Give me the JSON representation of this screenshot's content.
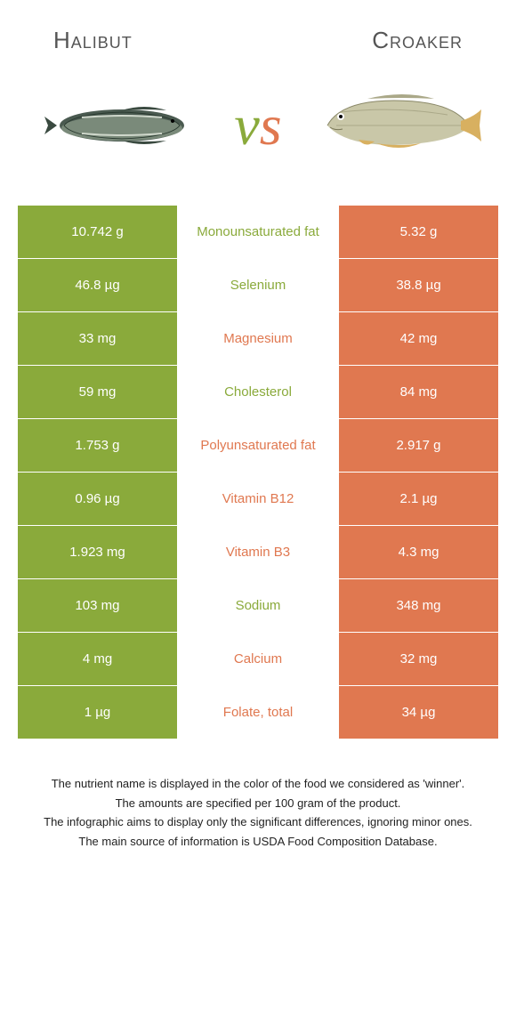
{
  "header": {
    "left": "Halibut",
    "right": "Croaker"
  },
  "vs": {
    "v": "v",
    "s": "s"
  },
  "colors": {
    "left": "#8aaa3b",
    "right": "#e07850",
    "mid_text_left": "#8aaa3b",
    "mid_text_right": "#e07850"
  },
  "rows": [
    {
      "left": "10.742 g",
      "mid": "Monounsaturated fat",
      "right": "5.32 g",
      "winner": "left"
    },
    {
      "left": "46.8 µg",
      "mid": "Selenium",
      "right": "38.8 µg",
      "winner": "left"
    },
    {
      "left": "33 mg",
      "mid": "Magnesium",
      "right": "42 mg",
      "winner": "right"
    },
    {
      "left": "59 mg",
      "mid": "Cholesterol",
      "right": "84 mg",
      "winner": "left"
    },
    {
      "left": "1.753 g",
      "mid": "Polyunsaturated fat",
      "right": "2.917 g",
      "winner": "right"
    },
    {
      "left": "0.96 µg",
      "mid": "Vitamin B12",
      "right": "2.1 µg",
      "winner": "right"
    },
    {
      "left": "1.923 mg",
      "mid": "Vitamin B3",
      "right": "4.3 mg",
      "winner": "right"
    },
    {
      "left": "103 mg",
      "mid": "Sodium",
      "right": "348 mg",
      "winner": "left"
    },
    {
      "left": "4 mg",
      "mid": "Calcium",
      "right": "32 mg",
      "winner": "right"
    },
    {
      "left": "1 µg",
      "mid": "Folate, total",
      "right": "34 µg",
      "winner": "right"
    }
  ],
  "footer": {
    "line1": "The nutrient name is displayed in the color of the food we considered as 'winner'.",
    "line2": "The amounts are specified per 100 gram of the product.",
    "line3": "The infographic aims to display only the significant differences, ignoring minor ones.",
    "line4": "The main source of information is USDA Food Composition Database."
  }
}
